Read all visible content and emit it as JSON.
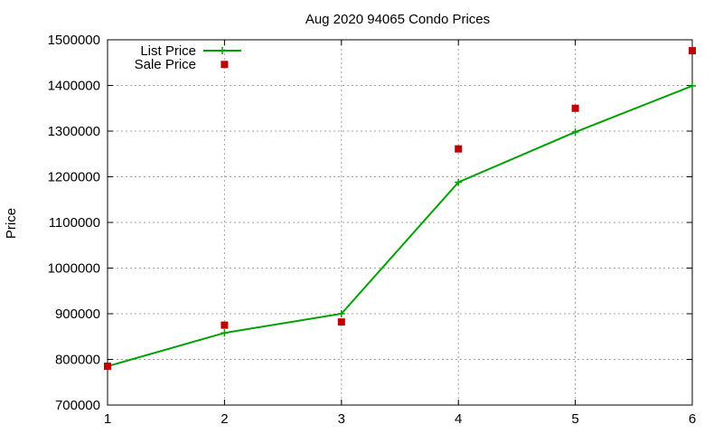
{
  "chart_data": {
    "type": "line",
    "title": "Aug 2020 94065 Condo Prices",
    "xlabel": "",
    "ylabel": "Price",
    "x": [
      1,
      2,
      3,
      4,
      5,
      6
    ],
    "xlim": [
      1,
      6
    ],
    "ylim": [
      700000,
      1500000
    ],
    "xticks": [
      "1",
      "2",
      "3",
      "4",
      "5",
      "6"
    ],
    "yticks": [
      "700000",
      "800000",
      "900000",
      "1000000",
      "1100000",
      "1200000",
      "1300000",
      "1400000",
      "1500000"
    ],
    "grid": true,
    "legend_position": "top-left",
    "series": [
      {
        "name": "List Price",
        "style": "line+cross",
        "color": "#00a000",
        "values": [
          785000,
          858000,
          900000,
          1188000,
          1298000,
          1399000
        ]
      },
      {
        "name": "Sale Price",
        "style": "square-points",
        "color": "#c00000",
        "values": [
          785000,
          875000,
          882000,
          1261000,
          1350000,
          1476000
        ]
      }
    ],
    "legend_extra_points": [
      {
        "series": "Sale Price",
        "x": 2,
        "y": 1446000
      }
    ]
  }
}
